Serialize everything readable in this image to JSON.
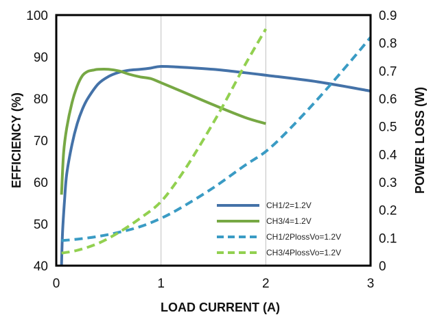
{
  "chart_data": {
    "type": "line",
    "xlabel": "LOAD CURRENT  (A)",
    "ylabel_left": "EFFICIENCY  (%)",
    "ylabel_right": "POWER LOSS (W)",
    "x_ticks": [
      "0",
      "1",
      "2",
      "3"
    ],
    "y_left_ticks": [
      "40",
      "50",
      "60",
      "70",
      "80",
      "90",
      "100"
    ],
    "y_right_ticks": [
      "0",
      "0.1",
      "0.2",
      "0.3",
      "0.4",
      "0.5",
      "0.6",
      "0.7",
      "0.8",
      "0.9"
    ],
    "xlim": [
      0,
      3
    ],
    "ylim_left": [
      40,
      100
    ],
    "ylim_right": [
      0,
      0.9
    ],
    "grid": "vertical",
    "legend_position": "bottom-right",
    "series": [
      {
        "name": "CH1/2=1.2V",
        "axis": "left",
        "style": "solid",
        "color": "#4472A8",
        "x": [
          0.05,
          0.06,
          0.08,
          0.1,
          0.15,
          0.2,
          0.25,
          0.3,
          0.4,
          0.5,
          0.6,
          0.7,
          0.8,
          0.9,
          1.0,
          1.2,
          1.5,
          1.8,
          2.0,
          2.5,
          3.0
        ],
        "y": [
          40,
          48,
          56,
          62,
          69,
          74,
          77.5,
          80,
          83.5,
          85.3,
          86.3,
          86.8,
          87.0,
          87.3,
          87.7,
          87.5,
          87.0,
          86.2,
          85.6,
          84.0,
          81.8
        ]
      },
      {
        "name": "CH3/4=1.2V",
        "axis": "left",
        "style": "solid",
        "color": "#77A844",
        "x": [
          0.05,
          0.07,
          0.1,
          0.15,
          0.2,
          0.25,
          0.3,
          0.35,
          0.4,
          0.5,
          0.6,
          0.7,
          0.8,
          0.9,
          1.0,
          1.2,
          1.5,
          1.8,
          2.0
        ],
        "y": [
          57,
          67,
          73,
          79,
          83,
          85.5,
          86.5,
          86.8,
          87.0,
          87.0,
          86.6,
          85.8,
          85.2,
          84.8,
          83.8,
          81.7,
          78.5,
          75.5,
          74.0
        ]
      },
      {
        "name": "CH1/2PlossVo=1.2V",
        "axis": "right",
        "style": "dashed",
        "color": "#3A9BC4",
        "x": [
          0.05,
          0.2,
          0.4,
          0.6,
          0.8,
          1.0,
          1.2,
          1.5,
          1.8,
          2.0,
          2.2,
          2.5,
          2.8,
          3.0
        ],
        "y": [
          0.09,
          0.095,
          0.105,
          0.12,
          0.14,
          0.17,
          0.21,
          0.28,
          0.36,
          0.41,
          0.48,
          0.6,
          0.73,
          0.82
        ]
      },
      {
        "name": "CH3/4PlossVo=1.2V",
        "axis": "right",
        "style": "dashed",
        "color": "#92D050",
        "x": [
          0.05,
          0.2,
          0.4,
          0.6,
          0.8,
          1.0,
          1.2,
          1.4,
          1.6,
          1.8,
          2.0
        ],
        "y": [
          0.045,
          0.055,
          0.08,
          0.12,
          0.17,
          0.23,
          0.33,
          0.45,
          0.58,
          0.72,
          0.85
        ]
      }
    ]
  }
}
